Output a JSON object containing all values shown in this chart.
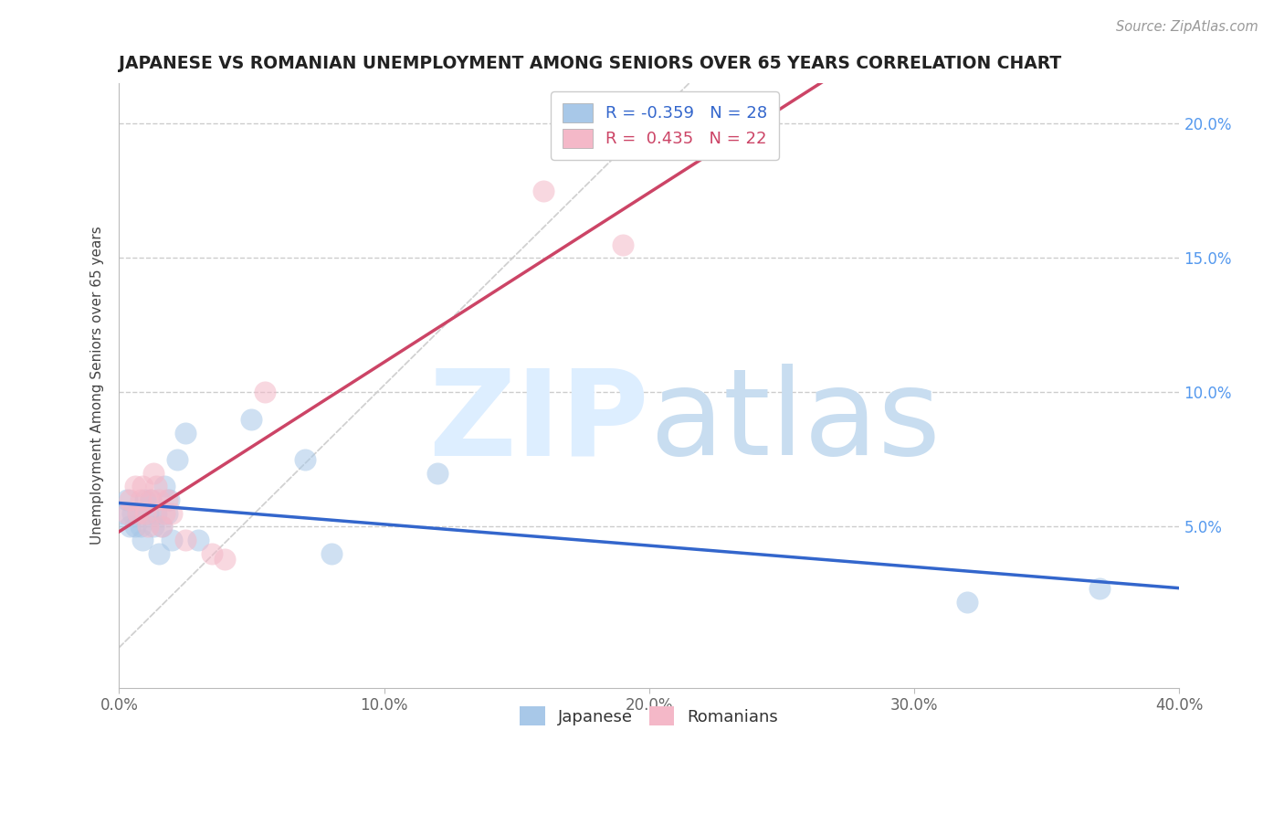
{
  "title": "JAPANESE VS ROMANIAN UNEMPLOYMENT AMONG SENIORS OVER 65 YEARS CORRELATION CHART",
  "source": "Source: ZipAtlas.com",
  "ylabel": "Unemployment Among Seniors over 65 years",
  "xlim": [
    0.0,
    0.4
  ],
  "ylim": [
    -0.01,
    0.215
  ],
  "xtick_vals": [
    0.0,
    0.1,
    0.2,
    0.3,
    0.4
  ],
  "xtick_labels": [
    "0.0%",
    "10.0%",
    "20.0%",
    "30.0%",
    "40.0%"
  ],
  "ytick_vals": [
    0.05,
    0.1,
    0.15,
    0.2
  ],
  "ytick_labels_right": [
    "5.0%",
    "10.0%",
    "15.0%",
    "20.0%"
  ],
  "japanese_color": "#a8c8e8",
  "romanian_color": "#f4b8c8",
  "japanese_line_color": "#3366cc",
  "romanian_line_color": "#cc4466",
  "japanese_R": -0.359,
  "japanese_N": 28,
  "romanian_R": 0.435,
  "romanian_N": 22,
  "japanese_x": [
    0.002,
    0.003,
    0.004,
    0.005,
    0.006,
    0.007,
    0.008,
    0.009,
    0.01,
    0.011,
    0.012,
    0.013,
    0.014,
    0.015,
    0.016,
    0.017,
    0.018,
    0.019,
    0.02,
    0.022,
    0.025,
    0.03,
    0.05,
    0.07,
    0.08,
    0.12,
    0.32,
    0.37
  ],
  "japanese_y": [
    0.055,
    0.06,
    0.05,
    0.055,
    0.05,
    0.055,
    0.05,
    0.045,
    0.06,
    0.055,
    0.06,
    0.05,
    0.055,
    0.04,
    0.05,
    0.065,
    0.055,
    0.06,
    0.045,
    0.075,
    0.085,
    0.045,
    0.09,
    0.075,
    0.04,
    0.07,
    0.022,
    0.027
  ],
  "romanian_x": [
    0.003,
    0.004,
    0.006,
    0.007,
    0.008,
    0.009,
    0.01,
    0.011,
    0.012,
    0.013,
    0.014,
    0.015,
    0.016,
    0.017,
    0.018,
    0.02,
    0.025,
    0.035,
    0.04,
    0.055,
    0.16,
    0.19
  ],
  "romanian_y": [
    0.055,
    0.06,
    0.065,
    0.055,
    0.06,
    0.065,
    0.055,
    0.05,
    0.06,
    0.07,
    0.065,
    0.06,
    0.05,
    0.055,
    0.06,
    0.055,
    0.045,
    0.04,
    0.038,
    0.1,
    0.175,
    0.155
  ],
  "watermark_zip": "ZIP",
  "watermark_atlas": "atlas",
  "watermark_color": "#ddeeff",
  "background_color": "#ffffff",
  "grid_color": "#cccccc",
  "ref_line_color": "#cccccc",
  "title_color": "#222222",
  "source_color": "#999999",
  "label_color": "#666666",
  "right_tick_color": "#5599ee"
}
